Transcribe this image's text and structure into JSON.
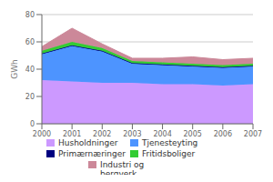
{
  "chart_data": {
    "type": "area",
    "stacked": true,
    "x": [
      2000,
      2001,
      2002,
      2003,
      2004,
      2005,
      2006,
      2007
    ],
    "xlim": [
      2000,
      2007
    ],
    "xticks": [
      2000,
      2001,
      2002,
      2003,
      2004,
      2005,
      2006,
      2007
    ],
    "ylabel": "GWh",
    "ylim": [
      0,
      80
    ],
    "yticks": [
      0,
      20,
      40,
      60,
      80
    ],
    "grid": true,
    "series": [
      {
        "name": "Husholdninger",
        "color": "#cc99ff",
        "values": [
          32,
          31,
          30,
          30,
          29,
          29,
          28,
          29
        ]
      },
      {
        "name": "Tjenesteyting",
        "color": "#4d94ff",
        "values": [
          19,
          26,
          23,
          14,
          14,
          13,
          13,
          13
        ]
      },
      {
        "name": "Primærnæringer",
        "color": "#000080",
        "values": [
          0.5,
          0.5,
          0.5,
          0.5,
          0.5,
          0.5,
          0.5,
          0.5
        ]
      },
      {
        "name": "Fritidsboliger",
        "color": "#33cc33",
        "values": [
          2.0,
          2.5,
          2.0,
          1.5,
          1.5,
          1.5,
          1.5,
          1.5
        ]
      },
      {
        "name": "Industri og\nbergverk",
        "color": "#cc8899",
        "values": [
          3,
          10,
          3,
          2,
          3,
          5,
          4,
          4
        ]
      }
    ]
  }
}
